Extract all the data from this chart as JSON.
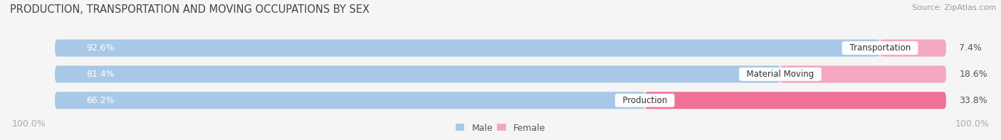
{
  "title": "PRODUCTION, TRANSPORTATION AND MOVING OCCUPATIONS BY SEX",
  "source": "Source: ZipAtlas.com",
  "categories": [
    "Transportation",
    "Material Moving",
    "Production"
  ],
  "male_values": [
    92.6,
    81.4,
    66.2
  ],
  "female_values": [
    7.4,
    18.6,
    33.8
  ],
  "male_color": "#a8c8e8",
  "female_color_transport": "#f4a8c0",
  "female_color_material": "#f4a8c0",
  "female_color_production": "#f07098",
  "bg_bar_color": "#e4e4e8",
  "label_color_male": "#ffffff",
  "background_color": "#f5f5f5",
  "title_fontsize": 10.5,
  "source_fontsize": 8,
  "bar_label_fontsize": 9,
  "cat_label_fontsize": 8.5,
  "axis_label_left": "100.0%",
  "axis_label_right": "100.0%"
}
